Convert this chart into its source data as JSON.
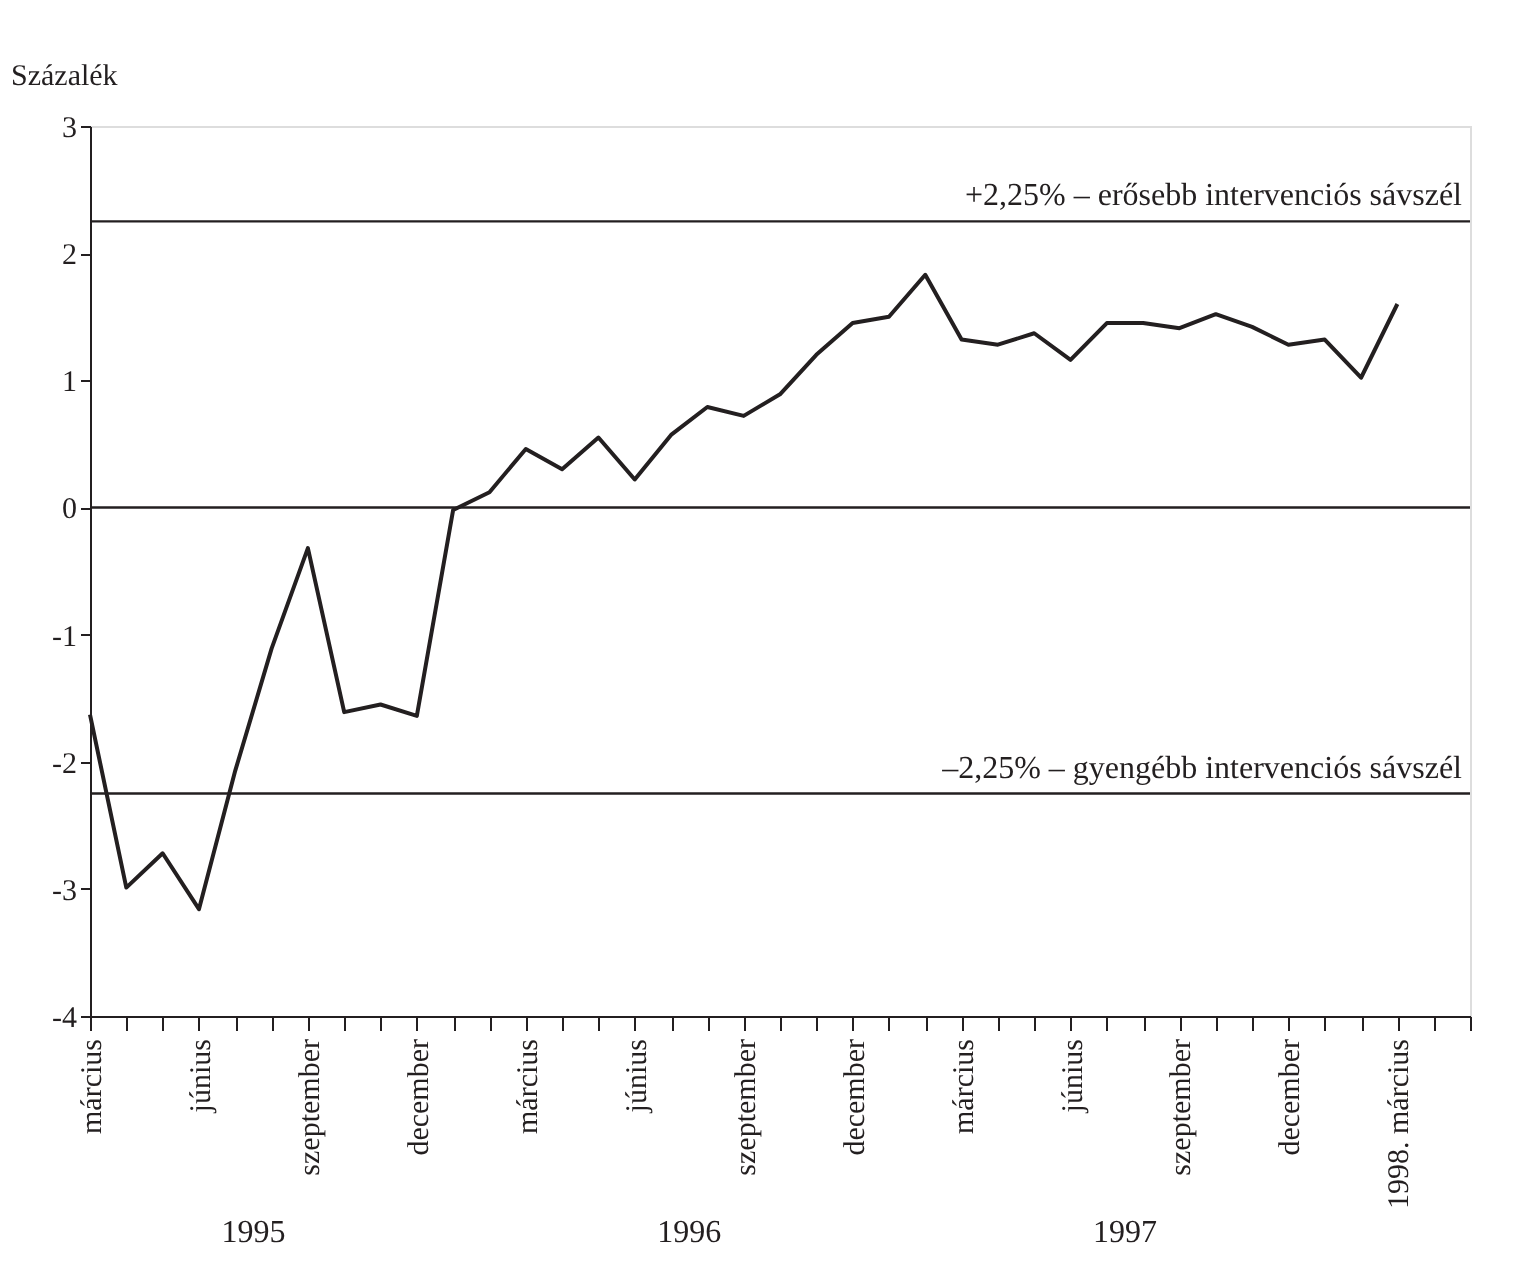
{
  "chart_data": {
    "type": "line",
    "ylabel": "Százalék",
    "categories": [
      "március",
      null,
      null,
      "június",
      null,
      null,
      "szeptember",
      null,
      null,
      "december",
      null,
      null,
      "március",
      null,
      null,
      "június",
      null,
      null,
      "szeptember",
      null,
      null,
      "december",
      null,
      null,
      "március",
      null,
      null,
      "június",
      null,
      null,
      "szeptember",
      null,
      null,
      "december",
      null,
      null,
      "1998. március",
      null,
      null
    ],
    "series": [
      {
        "color": "#231f20",
        "values": [
          -1.63,
          -2.99,
          -2.72,
          -3.16,
          -2.07,
          -1.11,
          -0.32,
          -1.61,
          -1.55,
          -1.64,
          -0.02,
          0.12,
          0.46,
          0.3,
          0.55,
          0.22,
          0.57,
          0.79,
          0.72,
          0.89,
          1.2,
          1.45,
          1.5,
          1.83,
          1.32,
          1.28,
          1.37,
          1.16,
          1.45,
          1.45,
          1.41,
          1.52,
          1.42,
          1.28,
          1.32,
          1.02,
          1.6,
          null,
          null
        ]
      }
    ],
    "ylim": [
      -4,
      3
    ],
    "yticks": [
      -4,
      -3,
      -2,
      -1,
      0,
      1,
      2,
      3
    ],
    "ref_lines": [
      {
        "axis": "y",
        "value": 2.25,
        "label": "+2,25% – erősebb intervenciós sávszél"
      },
      {
        "axis": "y",
        "value": -2.25,
        "label": "–2,25% – gyengébb intervenciós sávszél"
      },
      {
        "axis": "y",
        "value": 0
      }
    ],
    "annotations": [
      "1995",
      "1996",
      "1997"
    ],
    "grid": false,
    "legend": false,
    "marker": "none",
    "line_style": "solid"
  }
}
